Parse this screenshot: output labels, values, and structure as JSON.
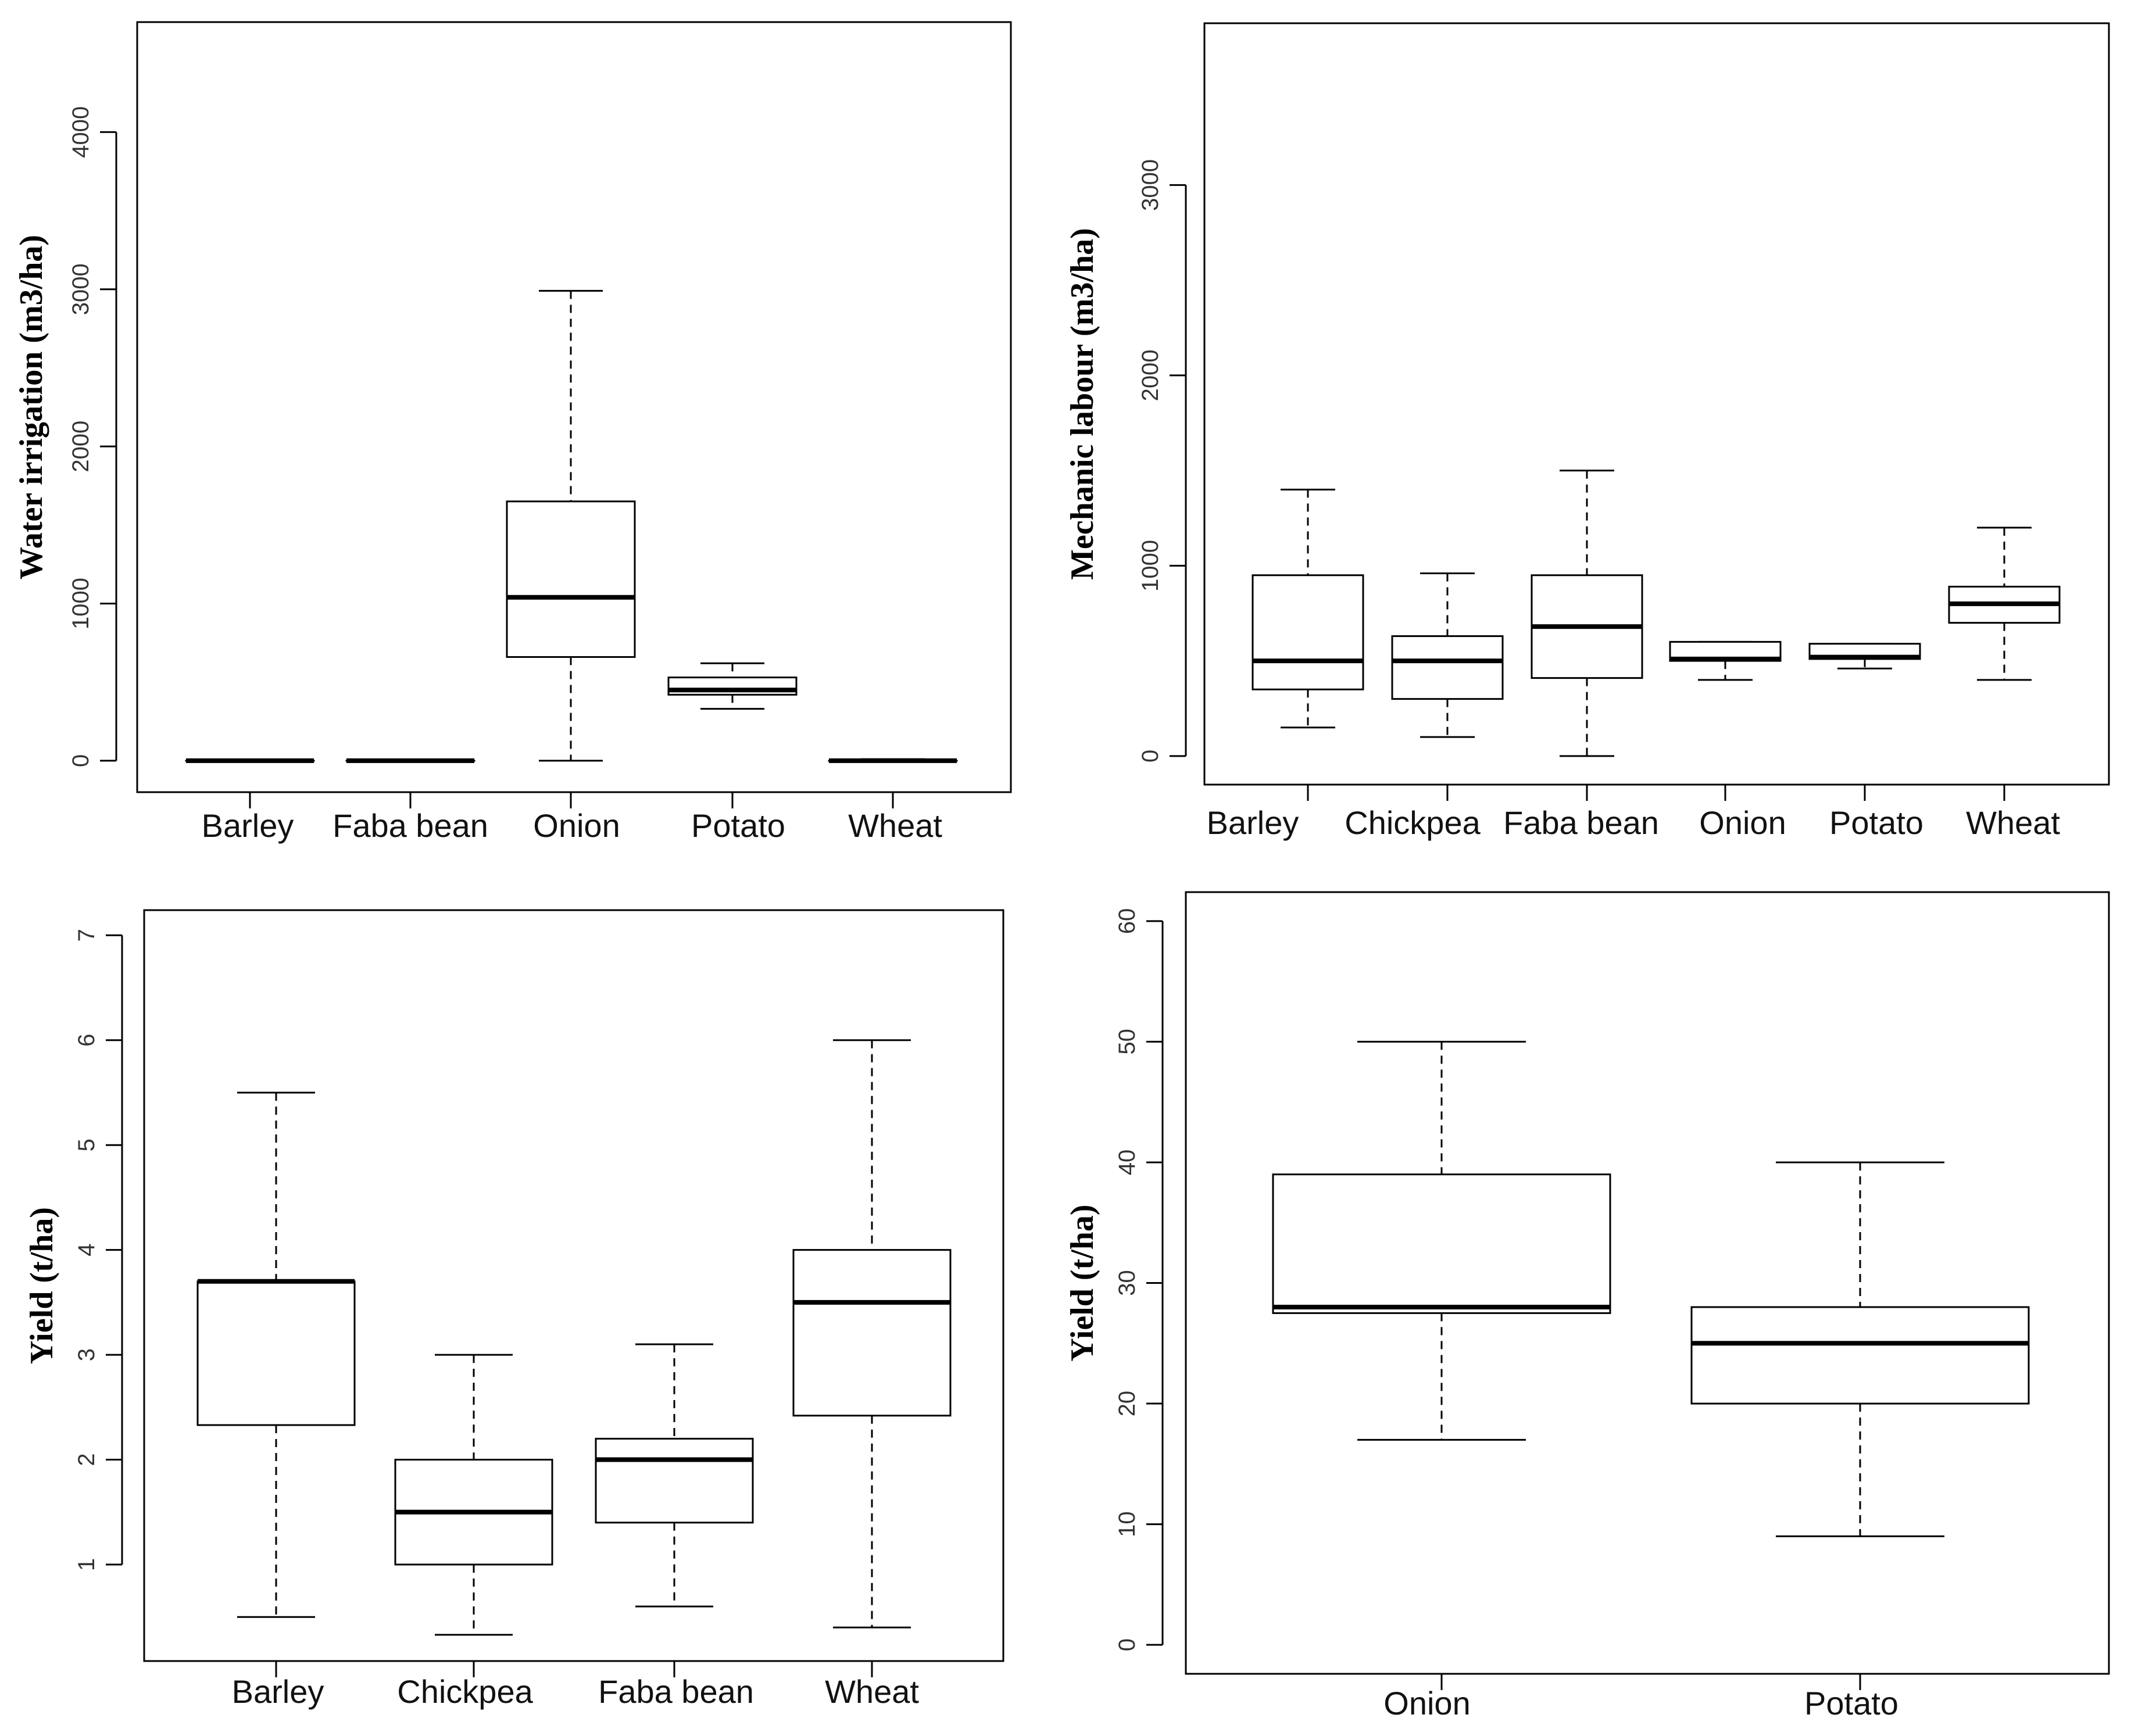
{
  "chart_data": [
    {
      "type": "boxplot",
      "title": "",
      "xlabel": "",
      "ylabel": "Water irrigation  (m3/ha)",
      "ylim": [
        -200,
        4700
      ],
      "yticks": [
        0,
        1000,
        2000,
        3000,
        4000
      ],
      "categories": [
        "Barley",
        "Faba bean",
        "Onion",
        "Potato",
        "Wheat"
      ],
      "boxes": [
        {
          "min": 0,
          "q1": 0,
          "median": 0,
          "q3": 0,
          "max": 0
        },
        {
          "min": 0,
          "q1": 0,
          "median": 0,
          "q3": 0,
          "max": 0
        },
        {
          "min": 0,
          "q1": 660,
          "median": 1040,
          "q3": 1650,
          "max": 2990
        },
        {
          "min": 330,
          "q1": 420,
          "median": 450,
          "q3": 530,
          "max": 620
        },
        {
          "min": 0,
          "q1": 0,
          "median": 0,
          "q3": 0,
          "max": 10
        }
      ]
    },
    {
      "type": "boxplot",
      "title": "",
      "xlabel": "",
      "ylabel": "Mechanic labour (m3/ha)",
      "ylim": [
        -150,
        3850
      ],
      "yticks": [
        0,
        1000,
        2000,
        3000
      ],
      "categories": [
        "Barley",
        "Chickpea",
        "Faba bean",
        "Onion",
        "Potato",
        "Wheat"
      ],
      "boxes": [
        {
          "min": 150,
          "q1": 350,
          "median": 500,
          "q3": 950,
          "max": 1400
        },
        {
          "min": 100,
          "q1": 300,
          "median": 500,
          "q3": 630,
          "max": 960
        },
        {
          "min": 0,
          "q1": 410,
          "median": 680,
          "q3": 950,
          "max": 1500
        },
        {
          "min": 400,
          "q1": 500,
          "median": 510,
          "q3": 600,
          "max": 600
        },
        {
          "min": 460,
          "q1": 510,
          "median": 520,
          "q3": 590,
          "max": 590
        },
        {
          "min": 400,
          "q1": 700,
          "median": 800,
          "q3": 890,
          "max": 1200
        }
      ]
    },
    {
      "type": "boxplot",
      "title": "",
      "xlabel": "",
      "ylabel": "Yield  (t/ha)",
      "ylim": [
        0.08,
        7.24
      ],
      "yticks": [
        1,
        2,
        3,
        4,
        5,
        6,
        7
      ],
      "categories": [
        "Barley",
        "Chickpea",
        "Faba bean",
        "Wheat"
      ],
      "boxes": [
        {
          "min": 0.5,
          "q1": 2.33,
          "median": 3.7,
          "q3": 3.7,
          "max": 5.5
        },
        {
          "min": 0.33,
          "q1": 1.0,
          "median": 1.5,
          "q3": 2.0,
          "max": 3.0
        },
        {
          "min": 0.6,
          "q1": 1.4,
          "median": 2.0,
          "q3": 2.2,
          "max": 3.1
        },
        {
          "min": 0.4,
          "q1": 2.42,
          "median": 3.5,
          "q3": 4.0,
          "max": 6.0
        }
      ]
    },
    {
      "type": "boxplot",
      "title": "",
      "xlabel": "",
      "ylabel": "Yield  (t/ha)",
      "ylim": [
        -2.4,
        62.4
      ],
      "yticks": [
        0,
        10,
        20,
        30,
        40,
        50,
        60
      ],
      "categories": [
        "Onion",
        "Potato"
      ],
      "boxes": [
        {
          "min": 17,
          "q1": 27.5,
          "median": 28,
          "q3": 39,
          "max": 50
        },
        {
          "min": 9,
          "q1": 20,
          "median": 25,
          "q3": 28,
          "max": 40
        }
      ]
    }
  ]
}
